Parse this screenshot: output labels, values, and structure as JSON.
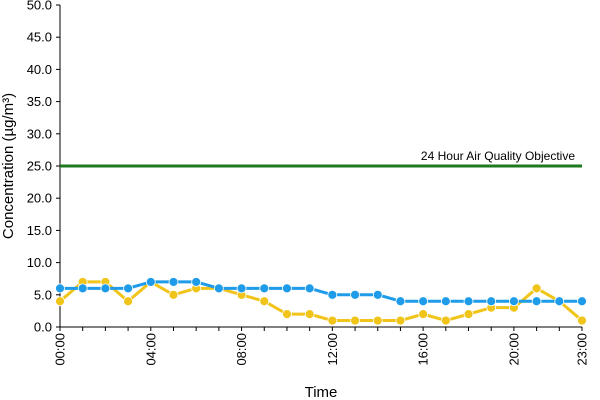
{
  "chart_data": {
    "type": "line",
    "title": "",
    "xlabel": "Time",
    "ylabel": "Concentration (µg/m³)",
    "ylim": [
      0,
      50
    ],
    "y_ticks": [
      "0.0",
      "5.0",
      "10.0",
      "15.0",
      "20.0",
      "25.0",
      "30.0",
      "35.0",
      "40.0",
      "45.0",
      "50.0"
    ],
    "x": [
      "00:00",
      "01:00",
      "02:00",
      "03:00",
      "04:00",
      "05:00",
      "06:00",
      "07:00",
      "08:00",
      "09:00",
      "10:00",
      "11:00",
      "12:00",
      "13:00",
      "14:00",
      "15:00",
      "16:00",
      "17:00",
      "18:00",
      "19:00",
      "20:00",
      "21:00",
      "22:00",
      "23:00"
    ],
    "x_tick_labels": [
      "00:00",
      "04:00",
      "08:00",
      "12:00",
      "16:00",
      "20:00",
      "23:00"
    ],
    "grid": false,
    "legend": "none",
    "series": [
      {
        "color": "#f0c419",
        "values": [
          4,
          7,
          7,
          4,
          7,
          5,
          6,
          6,
          5,
          4,
          2,
          2,
          1,
          1,
          1,
          1,
          2,
          1,
          2,
          3,
          3,
          6,
          4,
          1
        ]
      },
      {
        "color": "#1e9be9",
        "values": [
          6,
          6,
          6,
          6,
          7,
          7,
          7,
          6,
          6,
          6,
          6,
          6,
          5,
          5,
          5,
          4,
          4,
          4,
          4,
          4,
          4,
          4,
          4,
          4
        ]
      }
    ],
    "reference_line": {
      "value": 25,
      "label": "24 Hour Air Quality Objective",
      "color": "#1e7a1e"
    }
  }
}
